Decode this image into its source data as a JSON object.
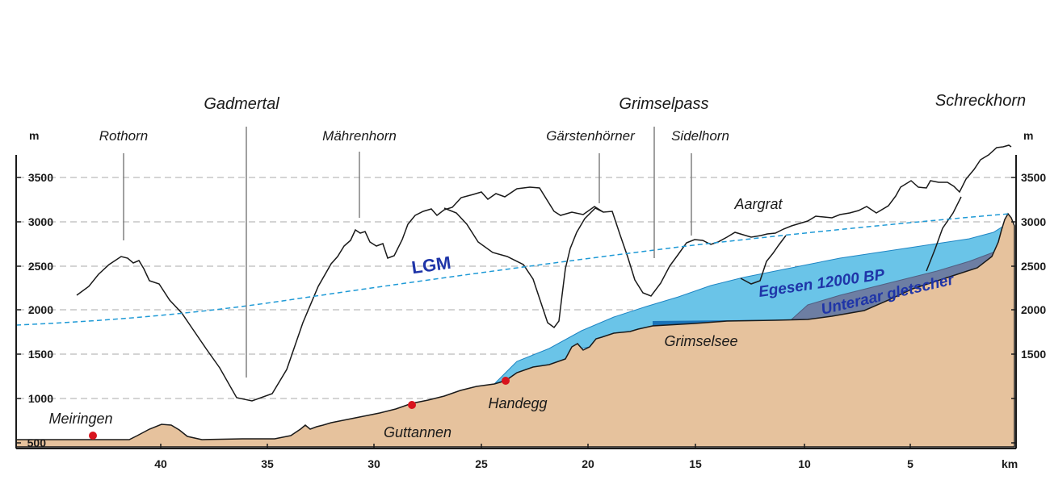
{
  "axis": {
    "y_unit_left": "m",
    "y_unit_right": "m",
    "x_unit": "km",
    "y_ticks_left": [
      "3500",
      "3000",
      "2500",
      "2000",
      "1500",
      "1000",
      "500"
    ],
    "y_ticks_right": [
      "3500",
      "3000",
      "2500",
      "2000",
      "1500"
    ],
    "x_ticks": [
      "40",
      "35",
      "30",
      "25",
      "20",
      "15",
      "10",
      "5"
    ]
  },
  "peaks": {
    "rothorn": "Rothorn",
    "gadmertal": "Gadmertal",
    "maehrenhorn": "Mährenhorn",
    "gaerstenhoerner": "Gärstenhörner",
    "grimselpass": "Grimselpass",
    "sidelhorn": "Sidelhorn",
    "schreckhorn": "Schreckhorn",
    "aargrat": "Aargrat"
  },
  "places": {
    "meiringen": "Meiringen",
    "guttannen": "Guttannen",
    "handegg": "Handegg",
    "grimselsee": "Grimselsee"
  },
  "glaciers": {
    "lgm": "LGM",
    "egesen": "Egesen 12000 BP",
    "unteraar": "Unteraar gletscher"
  },
  "colors": {
    "terrain": "#e6c29d",
    "egesen_ice": "#6ac4e8",
    "unteraar_ice": "#6d7ea3",
    "lake": "#1a73b8",
    "lgm_line": "#1f9ad6",
    "label_blue": "#1f35a8",
    "location_dot": "#d8141e"
  }
}
